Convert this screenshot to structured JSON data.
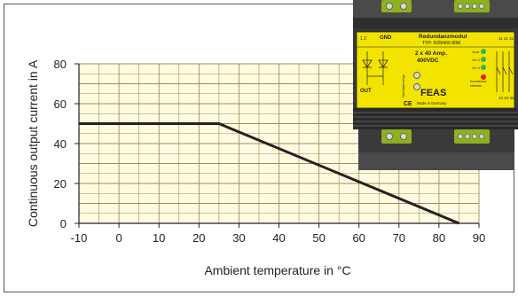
{
  "chart_data": {
    "type": "line",
    "title": "",
    "xlabel": "Ambient temperature  in °C",
    "ylabel": "Continuous output current in A",
    "xlim": [
      -10,
      90
    ],
    "ylim": [
      0,
      80
    ],
    "x_ticks": [
      "-10",
      "0",
      "10",
      "20",
      "30",
      "40",
      "50",
      "60",
      "70",
      "80",
      "90"
    ],
    "y_ticks": [
      "0",
      "20",
      "40",
      "60",
      "80"
    ],
    "grid": true,
    "series": [
      {
        "x": [
          -10,
          25,
          85
        ],
        "y": [
          50,
          50,
          0
        ]
      }
    ]
  },
  "module": {
    "name": "Redundanzmodul",
    "type": "TYP: RZM400-80M",
    "rating_line1": "2 x 40 Amp.",
    "rating_line2": "400VDC",
    "brand": "FEAS",
    "made_in": "Made in Germany",
    "ce_mark": "CE",
    "gnd_label": "GND",
    "out_label": "OUT",
    "pin_top": "1  2",
    "pin_right_top": "11  21  31",
    "pin_right_bottom": "14  24  34",
    "led_labels": [
      "Vout",
      "Vin 1",
      "Vin 2"
    ],
    "side_labels": [
      "Überlastanzeige",
      "Kurzschluss",
      "Überlast"
    ],
    "colors": {
      "housing": "#3a3a3a",
      "label": "#f2e400",
      "terminal": "#8cb020",
      "led_green": "#37b34a",
      "led_red": "#e02020"
    }
  }
}
